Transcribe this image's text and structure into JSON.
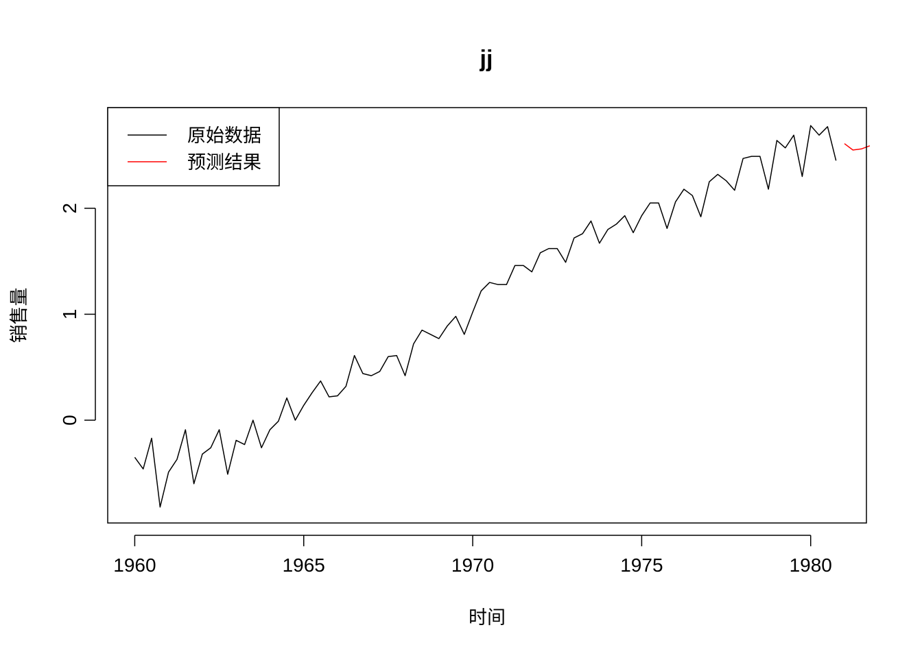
{
  "chart_data": {
    "type": "line",
    "title": "jj",
    "xlabel": "时间",
    "ylabel": "销售量",
    "xlim": [
      1959.2,
      1981.65
    ],
    "ylim": [
      -0.97,
      2.95
    ],
    "x_ticks": [
      1960,
      1965,
      1970,
      1975,
      1980
    ],
    "x_tick_labels": [
      "1960",
      "1965",
      "1970",
      "1975",
      "1980"
    ],
    "y_ticks": [
      0,
      1,
      2
    ],
    "y_tick_labels": [
      "0",
      "1",
      "2"
    ],
    "grid": false,
    "legend_position": "top-left",
    "series": [
      {
        "name": "原始数据",
        "color": "#000000",
        "start": 1960,
        "frequency": 4,
        "values": [
          -0.35,
          -0.46,
          -0.17,
          -0.82,
          -0.49,
          -0.37,
          -0.09,
          -0.6,
          -0.32,
          -0.26,
          -0.09,
          -0.51,
          -0.19,
          -0.23,
          0.0,
          -0.26,
          -0.09,
          -0.01,
          0.21,
          0.0,
          0.14,
          0.26,
          0.37,
          0.22,
          0.23,
          0.32,
          0.61,
          0.44,
          0.42,
          0.46,
          0.6,
          0.61,
          0.42,
          0.72,
          0.85,
          0.81,
          0.77,
          0.89,
          0.98,
          0.81,
          1.02,
          1.22,
          1.3,
          1.28,
          1.28,
          1.46,
          1.46,
          1.4,
          1.58,
          1.62,
          1.62,
          1.49,
          1.72,
          1.76,
          1.88,
          1.67,
          1.8,
          1.85,
          1.93,
          1.77,
          1.93,
          2.05,
          2.05,
          1.81,
          2.06,
          2.18,
          2.12,
          1.92,
          2.25,
          2.32,
          2.26,
          2.17,
          2.47,
          2.49,
          2.49,
          2.18,
          2.64,
          2.57,
          2.69,
          2.3,
          2.78,
          2.69,
          2.77,
          2.45
        ]
      },
      {
        "name": "预测结果",
        "color": "#ff0000",
        "start": 1981,
        "frequency": 4,
        "values": [
          2.61,
          2.55,
          2.56,
          2.59
        ]
      }
    ]
  }
}
